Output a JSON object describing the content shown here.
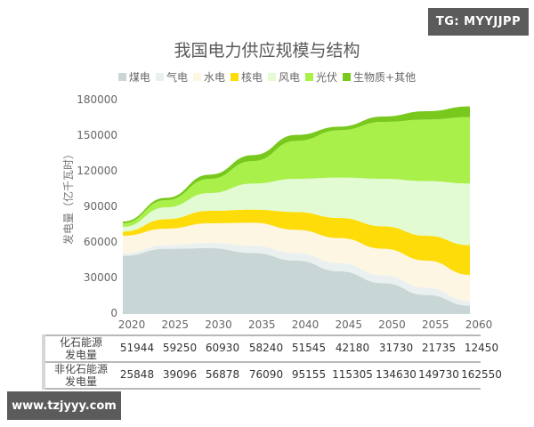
{
  "badges": {
    "tg": "TG: MYYJJPP",
    "site": "www.tzjyyy.com"
  },
  "chart_data": {
    "type": "area",
    "stacked": true,
    "title": "我国电力供应规模与结构",
    "xlabel": "",
    "ylabel": "发电量（亿千瓦时）",
    "ylim": [
      0,
      180000
    ],
    "yticks": [
      "0",
      "30000",
      "60000",
      "90000",
      "120000",
      "150000",
      "180000"
    ],
    "categories": [
      "2020",
      "2025",
      "2030",
      "2035",
      "2040",
      "2045",
      "2050",
      "2055",
      "2060"
    ],
    "legend_position": "top",
    "grid": false,
    "series": [
      {
        "name": "煤电",
        "color": "#c9d6d6",
        "values": [
          49000,
          55000,
          55500,
          51500,
          45000,
          36000,
          26000,
          16000,
          7000
        ]
      },
      {
        "name": "气电",
        "color": "#eaf0f0",
        "values": [
          2000,
          3000,
          4500,
          6000,
          6500,
          7000,
          6500,
          6000,
          4000
        ]
      },
      {
        "name": "水电",
        "color": "#fdf6e3",
        "values": [
          15000,
          14000,
          16500,
          19500,
          19500,
          21000,
          22500,
          23000,
          22000
        ]
      },
      {
        "name": "核电",
        "color": "#fddc0a",
        "values": [
          3500,
          8000,
          10500,
          11000,
          15000,
          17000,
          19000,
          21000,
          25000
        ]
      },
      {
        "name": "风电",
        "color": "#e3fbd3",
        "values": [
          4000,
          10000,
          15000,
          22000,
          28000,
          34000,
          40000,
          46000,
          52000
        ]
      },
      {
        "name": "光伏",
        "color": "#a9f04a",
        "values": [
          3000,
          6000,
          12000,
          19000,
          32000,
          40000,
          48000,
          52000,
          56000
        ]
      },
      {
        "name": "生物质+其他",
        "color": "#78c81e",
        "values": [
          1500,
          2000,
          3500,
          5000,
          5000,
          3000,
          4500,
          7000,
          9000
        ]
      }
    ],
    "table": {
      "rows": [
        {
          "label": [
            "化石能源",
            "发电量"
          ],
          "values": [
            "51944",
            "59250",
            "60930",
            "58240",
            "51545",
            "42180",
            "31730",
            "21735",
            "12450"
          ]
        },
        {
          "label": [
            "非化石能源",
            "发电量"
          ],
          "values": [
            "25848",
            "39096",
            "56878",
            "76090",
            "95155",
            "115305",
            "134630",
            "149730",
            "162550"
          ]
        }
      ]
    }
  }
}
